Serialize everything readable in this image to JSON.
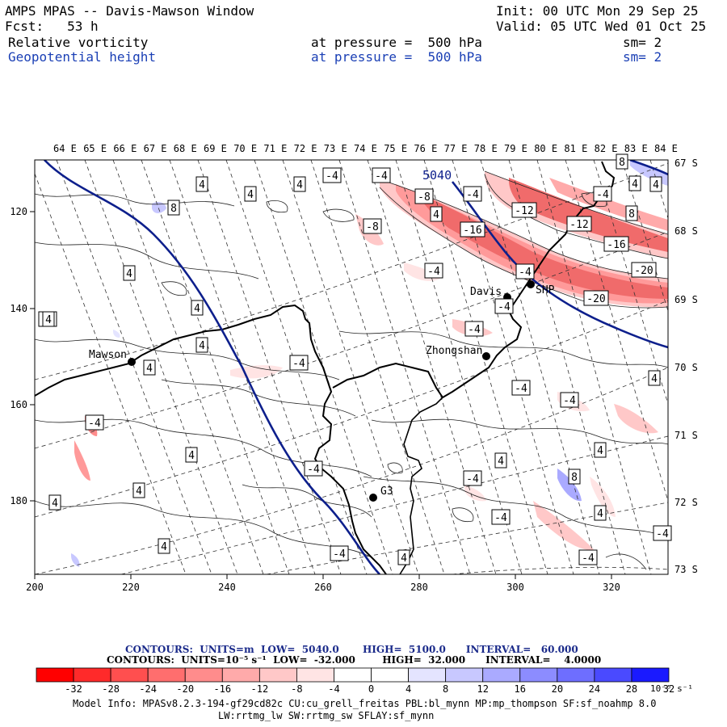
{
  "header": {
    "title": "AMPS MPAS -- Davis-Mawson Window",
    "init": "Init: 00 UTC Mon 29 Sep 25",
    "forecast": "Fcst:   53 h",
    "valid": "Valid: 05 UTC Wed 01 Oct 25",
    "field1": "Relative vorticity",
    "field1_level": "at pressure =  500 hPa",
    "field1_sm": "sm= 2",
    "field2": "Geopotential height",
    "field2_level": "at pressure =  500 hPa",
    "field2_sm": "sm= 2"
  },
  "map": {
    "top_lon_labels": [
      "64 E",
      "65 E",
      "66 E",
      "67 E",
      "68 E",
      "69 E",
      "70 E",
      "71 E",
      "72 E",
      "73 E",
      "74 E",
      "75 E",
      "76 E",
      "77 E",
      "78 E",
      "79 E",
      "80 E",
      "81 E",
      "82 E",
      "83 E",
      "84 E"
    ],
    "right_lat_labels": [
      "67 S",
      "68 S",
      "69 S",
      "70 S",
      "71 S",
      "72 S",
      "73 S"
    ],
    "x_ticks": [
      "200",
      "220",
      "240",
      "260",
      "280",
      "300",
      "320"
    ],
    "y_ticks": [
      "120",
      "140",
      "160",
      "180"
    ],
    "stations": [
      {
        "name": "Mawson"
      },
      {
        "name": "Davis"
      },
      {
        "name": "Zhongshan"
      },
      {
        "name": "G3"
      },
      {
        "name": "SHP"
      }
    ],
    "height_label": "5040",
    "vort_labels": [
      "4",
      "8",
      "4",
      "4",
      "4",
      "4",
      "-4",
      "-4",
      "-8",
      "-8",
      "-4",
      "-12",
      "-4",
      "-16",
      "-12",
      "-16",
      "-20",
      "-20",
      "4",
      "8",
      "-4",
      "-4",
      "-4",
      "-4",
      "-4",
      "4",
      "4",
      "4",
      "-4",
      "-4",
      "4",
      "4",
      "-4",
      "4",
      "-4",
      "4",
      "8",
      "4",
      "-4",
      "-4",
      "4",
      "4",
      "-4",
      "4",
      "4",
      "4",
      "-4",
      "-4",
      "-4",
      "4",
      "8"
    ],
    "colors": {
      "height_contour": "#0d1f8c",
      "coastline": "#000000",
      "neg_fill": "#f06b6b",
      "pos_fill": "#9aa8f0"
    }
  },
  "legend": {
    "line1": "CONTOURS:  UNITS=m  LOW=  5040.0       HIGH=  5100.0      INTERVAL=   60.000",
    "line2": "CONTOURS:  UNITS=10⁻⁵ s⁻¹  LOW=  -32.000        HIGH=  32.000      INTERVAL=    4.0000",
    "bar_labels": [
      "-32",
      "-28",
      "-24",
      "-20",
      "-16",
      "-12",
      "-8",
      "-4",
      "0",
      "4",
      "8",
      "12",
      "16",
      "20",
      "24",
      "28",
      "32"
    ],
    "units": "10⁻⁵ s⁻¹",
    "bar_colors": [
      "#ff0000",
      "#ff2a2a",
      "#ff4f4f",
      "#ff6e6e",
      "#ff8c8c",
      "#ffaaaa",
      "#ffc8c8",
      "#ffe4e4",
      "#ffffff",
      "#ffffff",
      "#e4e4ff",
      "#c8c8ff",
      "#aaaaff",
      "#8c8cff",
      "#6e6eff",
      "#4a4aff",
      "#1a1aff"
    ]
  },
  "footer": {
    "line1": "Model Info: MPASv8.2.3-194-gf29cd82c CU:cu_grell_freitas PBL:bl_mynn MP:mp_thompson SF:sf_noahmp 8.0",
    "line2": "LW:rrtmg_lw SW:rrtmg_sw SFLAY:sf_mynn"
  }
}
